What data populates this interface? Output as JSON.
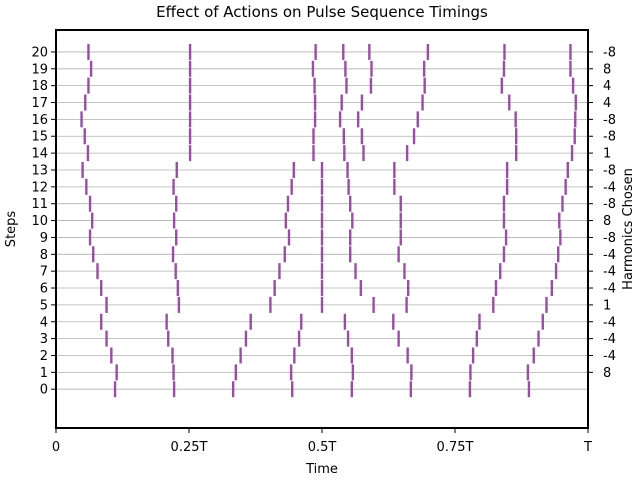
{
  "chart_data": {
    "type": "scatter",
    "title": "Effect of Actions on Pulse Sequence Timings",
    "xlabel": "Time",
    "ylabel": "Steps",
    "ylabel_right": "Harmonics Chosen",
    "xlim": [
      0,
      1
    ],
    "ylim": [
      -2.3,
      21.3
    ],
    "grid": "horizontal",
    "marker": "vertical-line",
    "marker_color": "#984ea3",
    "x_ticks": [
      {
        "value": 0,
        "label": "0"
      },
      {
        "value": 0.25,
        "label": "0.25T"
      },
      {
        "value": 0.5,
        "label": "0.5T"
      },
      {
        "value": 0.75,
        "label": "0.75T"
      },
      {
        "value": 1,
        "label": "T"
      }
    ],
    "y_ticks": [
      "0",
      "1",
      "2",
      "3",
      "4",
      "5",
      "6",
      "7",
      "8",
      "9",
      "10",
      "11",
      "12",
      "13",
      "14",
      "15",
      "16",
      "17",
      "18",
      "19",
      "20"
    ],
    "harmonics": [
      {
        "step": 1,
        "label": "8"
      },
      {
        "step": 2,
        "label": "-4"
      },
      {
        "step": 3,
        "label": "-4"
      },
      {
        "step": 4,
        "label": "-4"
      },
      {
        "step": 5,
        "label": "1"
      },
      {
        "step": 6,
        "label": "-4"
      },
      {
        "step": 7,
        "label": "-4"
      },
      {
        "step": 8,
        "label": "-4"
      },
      {
        "step": 9,
        "label": "-8"
      },
      {
        "step": 10,
        "label": "8"
      },
      {
        "step": 11,
        "label": "-8"
      },
      {
        "step": 12,
        "label": "-4"
      },
      {
        "step": 13,
        "label": "-8"
      },
      {
        "step": 14,
        "label": "1"
      },
      {
        "step": 15,
        "label": "-8"
      },
      {
        "step": 16,
        "label": "-8"
      },
      {
        "step": 17,
        "label": "4"
      },
      {
        "step": 18,
        "label": "4"
      },
      {
        "step": 19,
        "label": "8"
      },
      {
        "step": 20,
        "label": "-8"
      }
    ],
    "series": [
      {
        "step": 0,
        "x": [
          0.111,
          0.222,
          0.333,
          0.444,
          0.556,
          0.667,
          0.778,
          0.889
        ]
      },
      {
        "step": 1,
        "x": [
          0.114,
          0.221,
          0.338,
          0.442,
          0.558,
          0.668,
          0.779,
          0.887
        ]
      },
      {
        "step": 2,
        "x": [
          0.104,
          0.219,
          0.347,
          0.448,
          0.556,
          0.661,
          0.784,
          0.898
        ]
      },
      {
        "step": 3,
        "x": [
          0.095,
          0.211,
          0.357,
          0.457,
          0.549,
          0.644,
          0.791,
          0.907
        ]
      },
      {
        "step": 4,
        "x": [
          0.085,
          0.208,
          0.366,
          0.461,
          0.543,
          0.634,
          0.796,
          0.915
        ]
      },
      {
        "step": 5,
        "x": [
          0.095,
          0.231,
          0.403,
          0.5,
          0.597,
          0.659,
          0.822,
          0.922
        ]
      },
      {
        "step": 6,
        "x": [
          0.085,
          0.229,
          0.411,
          0.5,
          0.573,
          0.662,
          0.827,
          0.932
        ]
      },
      {
        "step": 7,
        "x": [
          0.078,
          0.225,
          0.42,
          0.5,
          0.563,
          0.655,
          0.835,
          0.94
        ]
      },
      {
        "step": 8,
        "x": [
          0.07,
          0.22,
          0.43,
          0.5,
          0.553,
          0.644,
          0.842,
          0.944
        ]
      },
      {
        "step": 9,
        "x": [
          0.064,
          0.226,
          0.438,
          0.5,
          0.553,
          0.648,
          0.846,
          0.948
        ]
      },
      {
        "step": 10,
        "x": [
          0.068,
          0.222,
          0.432,
          0.5,
          0.557,
          0.648,
          0.842,
          0.946
        ]
      },
      {
        "step": 11,
        "x": [
          0.064,
          0.226,
          0.436,
          0.5,
          0.553,
          0.648,
          0.842,
          0.952
        ]
      },
      {
        "step": 12,
        "x": [
          0.057,
          0.221,
          0.443,
          0.5,
          0.55,
          0.636,
          0.848,
          0.958
        ]
      },
      {
        "step": 13,
        "x": [
          0.05,
          0.227,
          0.447,
          0.5,
          0.548,
          0.636,
          0.848,
          0.962
        ]
      },
      {
        "step": 14,
        "x": [
          0.06,
          0.252,
          0.484,
          0.542,
          0.578,
          0.66,
          0.865,
          0.97
        ]
      },
      {
        "step": 15,
        "x": [
          0.054,
          0.252,
          0.484,
          0.541,
          0.575,
          0.673,
          0.865,
          0.975
        ]
      },
      {
        "step": 16,
        "x": [
          0.048,
          0.252,
          0.487,
          0.534,
          0.568,
          0.68,
          0.864,
          0.976
        ]
      },
      {
        "step": 17,
        "x": [
          0.055,
          0.252,
          0.487,
          0.537,
          0.575,
          0.689,
          0.852,
          0.977
        ]
      },
      {
        "step": 18,
        "x": [
          0.061,
          0.252,
          0.486,
          0.546,
          0.592,
          0.693,
          0.838,
          0.972
        ]
      },
      {
        "step": 19,
        "x": [
          0.066,
          0.252,
          0.483,
          0.544,
          0.593,
          0.692,
          0.842,
          0.967
        ]
      },
      {
        "step": 20,
        "x": [
          0.061,
          0.252,
          0.488,
          0.54,
          0.589,
          0.699,
          0.843,
          0.967
        ]
      }
    ]
  }
}
